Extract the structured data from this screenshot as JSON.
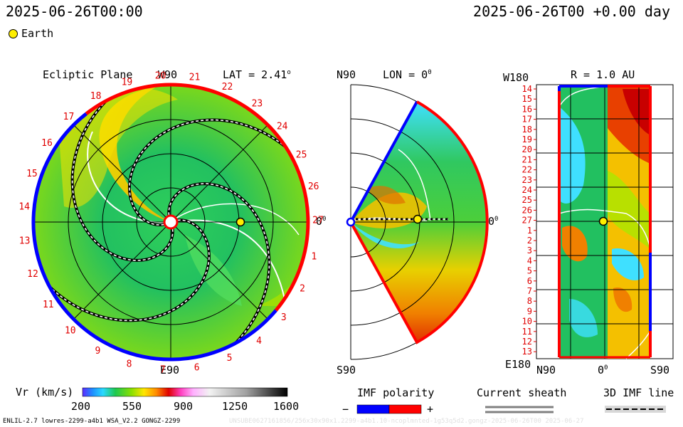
{
  "header": {
    "left_time": "2025-06-26T00:00",
    "right_time": "2025-06-26T00 +0.00 day",
    "earth_label": "Earth"
  },
  "panels": {
    "ecliptic": {
      "title": "Ecliptic Plane",
      "top_label": "W90",
      "bottom_label": "E90",
      "right_label": "0",
      "lat_label": "LAT = 2.41",
      "lat_sup": "o"
    },
    "meridional": {
      "title": "N90",
      "lon_label": "LON = 0",
      "lon_sup": "0",
      "bottom_label": "S90",
      "right_label": "0",
      "right_sup": "0"
    },
    "synoptic": {
      "top_left": "W180",
      "r_label": "R = 1.0 AU",
      "bottom_left": "E180",
      "x_labels": [
        "N90",
        "0",
        "S90"
      ],
      "x_sup": "0",
      "day_labels": [
        "14",
        "15",
        "16",
        "17",
        "18",
        "19",
        "20",
        "21",
        "22",
        "23",
        "24",
        "25",
        "26",
        "27",
        "1",
        "2",
        "3",
        "4",
        "5",
        "6",
        "7",
        "8",
        "9",
        "10",
        "11",
        "12",
        "13"
      ]
    }
  },
  "rotation_days": [
    "1",
    "2",
    "3",
    "4",
    "5",
    "6",
    "7",
    "8",
    "9",
    "10",
    "11",
    "12",
    "13",
    "14",
    "15",
    "16",
    "17",
    "18",
    "19",
    "20",
    "21",
    "22",
    "23",
    "24",
    "25",
    "26",
    "27"
  ],
  "legend": {
    "vr_label": "Vr (km/s)",
    "vr_ticks": [
      "200",
      "550",
      "900",
      "1250",
      "1600"
    ],
    "imf_title": "IMF polarity",
    "imf_minus": "−",
    "imf_plus": "+",
    "sheath_title": "Current sheath",
    "imf3d_title": "3D IMF line"
  },
  "footer": {
    "left": "ENLIL-2.7 lowres-2299-a4b1 WSA_V2.2 GONGZ-2299",
    "right": "UNSUBE0627161856/256x30x90x1.2299-a4b1.10-ncoplmnted-1g53q5d2.gongz-2025-06-26T00   2025-06-27"
  },
  "colors": {
    "polarity_neg": "#0000ff",
    "polarity_pos": "#ff0000",
    "day_label": "#e00000",
    "earth": "#ffee00"
  }
}
